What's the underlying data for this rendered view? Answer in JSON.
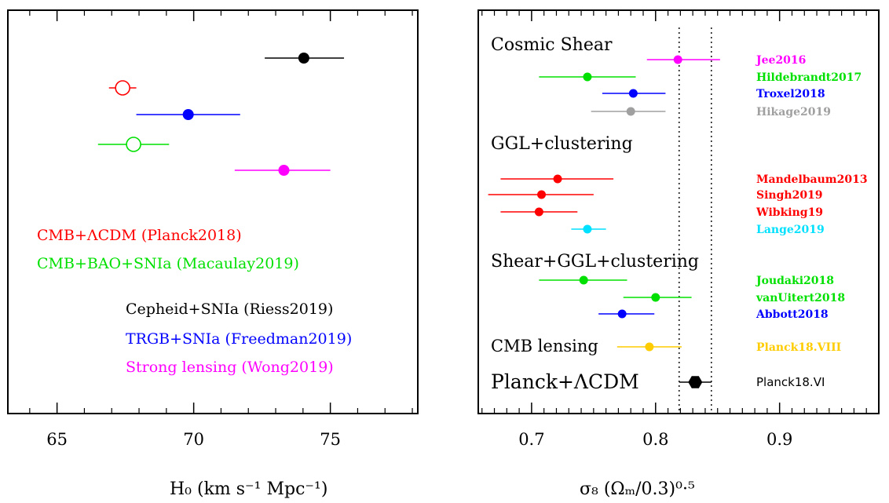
{
  "chart_data": [
    {
      "type": "scatter",
      "subtype": "forest-plot",
      "xlabel": "H₀ (km s⁻¹ Mpc⁻¹)",
      "xlim": [
        63.2,
        78.2
      ],
      "xticks": [
        65,
        70,
        75
      ],
      "tick_labels": [
        "65",
        "70",
        "75"
      ],
      "points": [
        {
          "value": 74.03,
          "lo": 72.6,
          "hi": 75.5,
          "color": "#000000",
          "filled": true,
          "name": "Cepheid+SNIa (Riess2019)"
        },
        {
          "value": 67.4,
          "lo": 66.9,
          "hi": 67.9,
          "color": "#ff0000",
          "filled": false,
          "name": "CMB+ΛCDM (Planck2018)"
        },
        {
          "value": 69.8,
          "lo": 67.9,
          "hi": 71.7,
          "color": "#0000ff",
          "filled": true,
          "name": "TRGB+SNIa (Freedman2019)"
        },
        {
          "value": 67.8,
          "lo": 66.5,
          "hi": 69.1,
          "color": "#00e000",
          "filled": false,
          "name": "CMB+BAO+SNIa (Macaulay2019)"
        },
        {
          "value": 73.3,
          "lo": 71.5,
          "hi": 75.0,
          "color": "#ff00ff",
          "filled": true,
          "name": "Strong lensing (Wong2019)"
        }
      ],
      "legend": [
        {
          "text": "CMB+ΛCDM (Planck2018)",
          "color": "#ff0000"
        },
        {
          "text": "CMB+BAO+SNIa (Macaulay2019)",
          "color": "#00e000"
        },
        {
          "text": "Cepheid+SNIa (Riess2019)",
          "color": "#000000"
        },
        {
          "text": "TRGB+SNIa (Freedman2019)",
          "color": "#0000ff"
        },
        {
          "text": "Strong lensing (Wong2019)",
          "color": "#ff00ff"
        }
      ]
    },
    {
      "type": "scatter",
      "subtype": "forest-plot",
      "xlabel": "σ₈ (Ωₘ/0.3)⁰·⁵",
      "xlim": [
        0.657,
        0.98
      ],
      "xticks": [
        0.7,
        0.8,
        0.9
      ],
      "tick_labels": [
        "0.7",
        "0.8",
        "0.9"
      ],
      "reference_lines": [
        0.819,
        0.845
      ],
      "groups": [
        "Cosmic Shear",
        "GGL+clustering",
        "Shear+GGL+clustering",
        "CMB lensing",
        "Planck+ΛCDM"
      ],
      "points": [
        {
          "label": "Jee2016",
          "value": 0.818,
          "lo": 0.793,
          "hi": 0.852,
          "color": "#ff00ff",
          "marker": "dot"
        },
        {
          "label": "Hildebrandt2017",
          "value": 0.745,
          "lo": 0.706,
          "hi": 0.784,
          "color": "#00e000",
          "marker": "dot"
        },
        {
          "label": "Troxel2018",
          "value": 0.782,
          "lo": 0.757,
          "hi": 0.808,
          "color": "#0000ff",
          "marker": "dot"
        },
        {
          "label": "Hikage2019",
          "value": 0.78,
          "lo": 0.748,
          "hi": 0.808,
          "color": "#a0a0a0",
          "marker": "dot"
        },
        {
          "label": "Mandelbaum2013",
          "value": 0.721,
          "lo": 0.675,
          "hi": 0.766,
          "color": "#ff0000",
          "marker": "dot"
        },
        {
          "label": "Singh2019",
          "value": 0.708,
          "lo": 0.665,
          "hi": 0.75,
          "color": "#ff0000",
          "marker": "dot"
        },
        {
          "label": "Wibking19",
          "value": 0.706,
          "lo": 0.675,
          "hi": 0.737,
          "color": "#ff0000",
          "marker": "dot"
        },
        {
          "label": "Lange2019",
          "value": 0.745,
          "lo": 0.732,
          "hi": 0.76,
          "color": "#00e0ff",
          "marker": "dot"
        },
        {
          "label": "Joudaki2018",
          "value": 0.742,
          "lo": 0.706,
          "hi": 0.777,
          "color": "#00e000",
          "marker": "dot"
        },
        {
          "label": "vanUitert2018",
          "value": 0.8,
          "lo": 0.774,
          "hi": 0.829,
          "color": "#00e000",
          "marker": "dot"
        },
        {
          "label": "Abbott2018",
          "value": 0.773,
          "lo": 0.754,
          "hi": 0.799,
          "color": "#0000ff",
          "marker": "dot"
        },
        {
          "label": "Planck18.VIII",
          "value": 0.795,
          "lo": 0.769,
          "hi": 0.821,
          "color": "#ffcc00",
          "marker": "dot"
        },
        {
          "label": "Planck18.VI",
          "value": 0.832,
          "lo": 0.819,
          "hi": 0.845,
          "color": "#000000",
          "marker": "hexagon"
        }
      ]
    }
  ]
}
